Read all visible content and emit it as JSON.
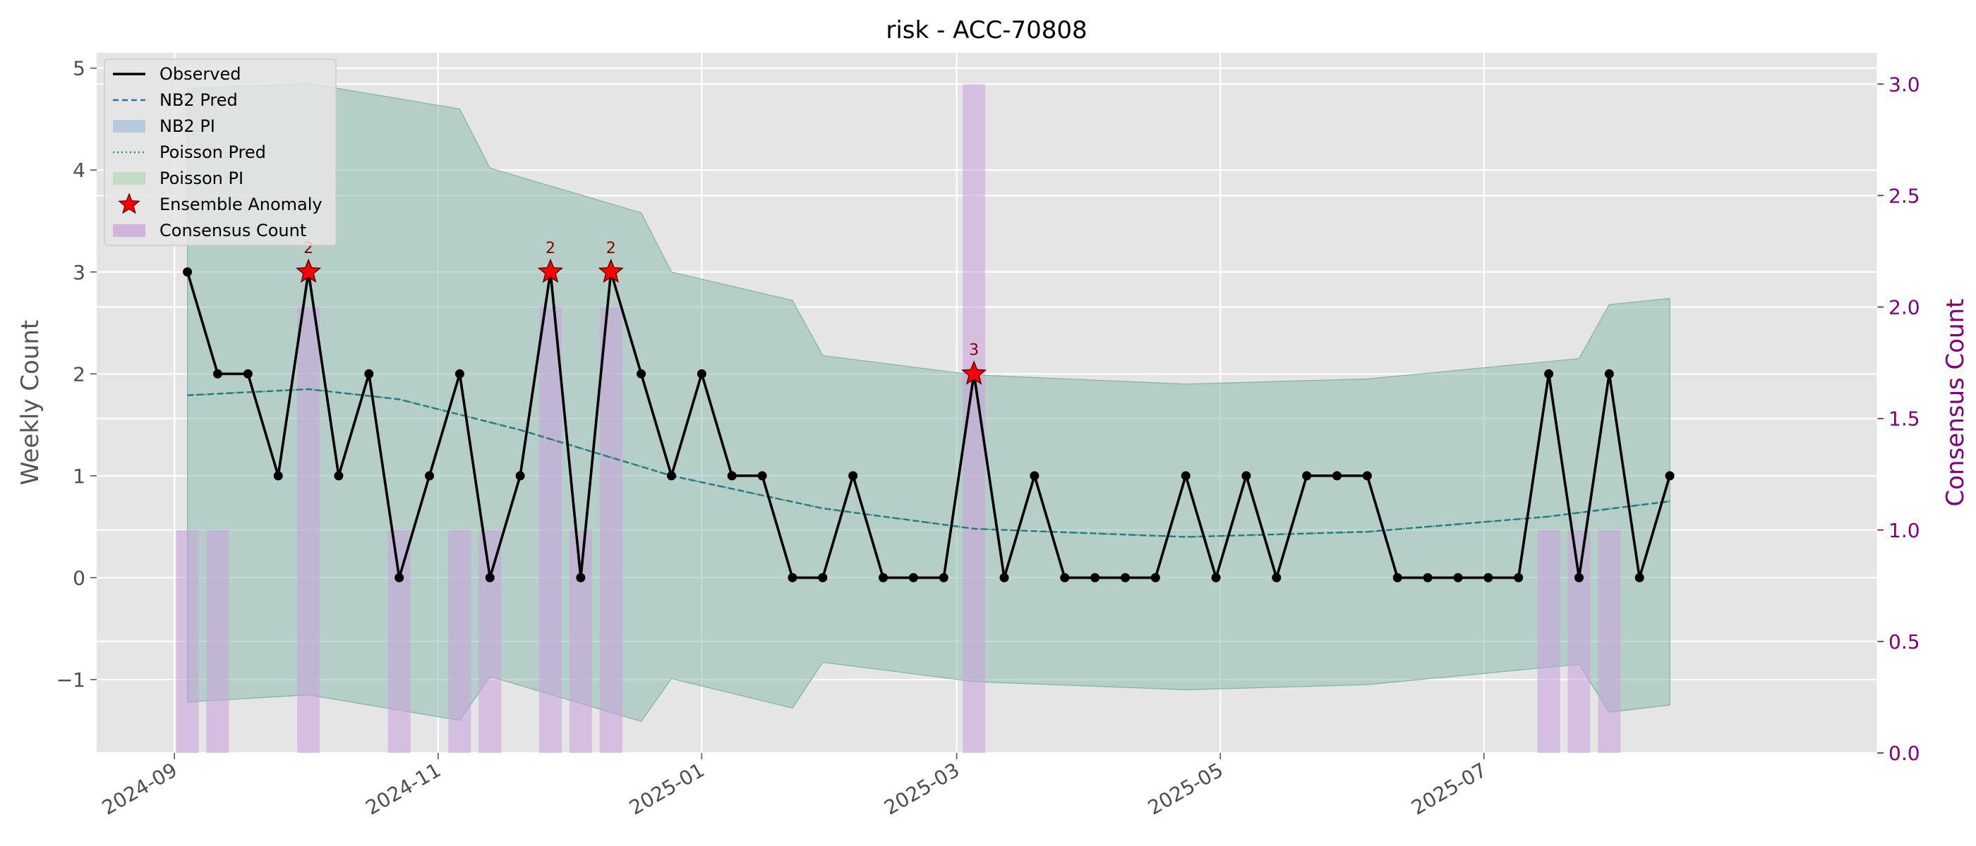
{
  "chart_data": {
    "type": "line",
    "title": "risk - ACC-70808",
    "ylabel": "Weekly Count",
    "ylabel_right": "Consensus Count",
    "ylim": [
      -1.72,
      5.15
    ],
    "ylim_right": [
      0,
      3.14
    ],
    "yticks": [
      {
        "v": -1,
        "label": "−1"
      },
      {
        "v": 0,
        "label": "0"
      },
      {
        "v": 1,
        "label": "1"
      },
      {
        "v": 2,
        "label": "2"
      },
      {
        "v": 3,
        "label": "3"
      },
      {
        "v": 4,
        "label": "4"
      },
      {
        "v": 5,
        "label": "5"
      }
    ],
    "yticks_right": [
      {
        "v": 0,
        "label": "0.0"
      },
      {
        "v": 0.5,
        "label": "0.5"
      },
      {
        "v": 1.0,
        "label": "1.0"
      },
      {
        "v": 1.5,
        "label": "1.5"
      },
      {
        "v": 2.0,
        "label": "2.0"
      },
      {
        "v": 2.5,
        "label": "2.5"
      },
      {
        "v": 3.0,
        "label": "3.0"
      }
    ],
    "xlim": [
      "2024-08-14",
      "2025-09-30"
    ],
    "xticks": [
      "2024-09-01",
      "2024-11-01",
      "2025-01-01",
      "2025-03-01",
      "2025-05-01",
      "2025-07-01"
    ],
    "xtick_labels": [
      "2024-09",
      "2024-11",
      "2025-01",
      "2025-03",
      "2025-05",
      "2025-07"
    ],
    "grid": true,
    "legend_position": "top-left",
    "colors": {
      "observed": "#000000",
      "nb2": "#1f77b4",
      "poisson": "#2ca02c",
      "band": "#8fbcb0",
      "anomaly": "#ff0000",
      "consensus": "#c9a0dc",
      "right_axis": "#800080",
      "background": "#e5e5e5"
    },
    "legend": [
      {
        "label": "Observed",
        "style": "line"
      },
      {
        "label": "NB2 Pred",
        "style": "dashed"
      },
      {
        "label": "NB2 PI",
        "style": "patch-blue"
      },
      {
        "label": "Poisson Pred",
        "style": "dotted"
      },
      {
        "label": "Poisson PI",
        "style": "patch-green"
      },
      {
        "label": "Ensemble Anomaly",
        "style": "star"
      },
      {
        "label": "Consensus Count",
        "style": "patch-purple"
      }
    ],
    "weeks": [
      "2024-09-04",
      "2024-09-11",
      "2024-09-18",
      "2024-09-25",
      "2024-10-02",
      "2024-10-09",
      "2024-10-16",
      "2024-10-23",
      "2024-10-30",
      "2024-11-06",
      "2024-11-13",
      "2024-11-20",
      "2024-11-27",
      "2024-12-04",
      "2024-12-11",
      "2024-12-18",
      "2024-12-25",
      "2025-01-01",
      "2025-01-08",
      "2025-01-15",
      "2025-01-22",
      "2025-01-29",
      "2025-02-05",
      "2025-02-12",
      "2025-02-19",
      "2025-02-26",
      "2025-03-05",
      "2025-03-12",
      "2025-03-19",
      "2025-03-26",
      "2025-04-02",
      "2025-04-09",
      "2025-04-16",
      "2025-04-23",
      "2025-04-30",
      "2025-05-07",
      "2025-05-14",
      "2025-05-21",
      "2025-05-28",
      "2025-06-04",
      "2025-06-11",
      "2025-06-18",
      "2025-06-25",
      "2025-07-02",
      "2025-07-09",
      "2025-07-16",
      "2025-07-23",
      "2025-07-30",
      "2025-08-06",
      "2025-08-13"
    ],
    "observed": [
      3,
      2,
      2,
      1,
      3,
      1,
      2,
      0,
      1,
      2,
      0,
      1,
      3,
      0,
      3,
      2,
      1,
      2,
      1,
      1,
      0,
      0,
      1,
      0,
      0,
      0,
      2,
      0,
      1,
      0,
      0,
      0,
      0,
      1,
      0,
      1,
      0,
      1,
      1,
      1,
      0,
      0,
      0,
      0,
      0,
      2,
      0,
      2,
      0,
      1
    ],
    "band": {
      "knots": [
        {
          "date": "2024-09-04",
          "lower": -1.22,
          "upper": 4.8
        },
        {
          "date": "2024-10-02",
          "lower": -1.15,
          "upper": 4.85
        },
        {
          "date": "2024-11-06",
          "lower": -1.4,
          "upper": 4.6
        },
        {
          "date": "2024-11-13",
          "lower": -0.97,
          "upper": 4.02
        },
        {
          "date": "2024-12-18",
          "lower": -1.41,
          "upper": 3.58
        },
        {
          "date": "2024-12-25",
          "lower": -0.99,
          "upper": 3.0
        },
        {
          "date": "2025-01-22",
          "lower": -1.28,
          "upper": 2.72
        },
        {
          "date": "2025-01-29",
          "lower": -0.83,
          "upper": 2.18
        },
        {
          "date": "2025-03-05",
          "lower": -1.02,
          "upper": 1.99
        },
        {
          "date": "2025-04-23",
          "lower": -1.1,
          "upper": 1.9
        },
        {
          "date": "2025-06-04",
          "lower": -1.05,
          "upper": 1.95
        },
        {
          "date": "2025-07-23",
          "lower": -0.85,
          "upper": 2.15
        },
        {
          "date": "2025-07-30",
          "lower": -1.32,
          "upper": 2.68
        },
        {
          "date": "2025-08-13",
          "lower": -1.25,
          "upper": 2.74
        }
      ]
    },
    "nb2_pred_knots": [
      {
        "date": "2024-09-04",
        "value": 1.79
      },
      {
        "date": "2024-10-02",
        "value": 1.85
      },
      {
        "date": "2024-10-23",
        "value": 1.75
      },
      {
        "date": "2024-11-20",
        "value": 1.45
      },
      {
        "date": "2024-12-25",
        "value": 1.0
      },
      {
        "date": "2025-01-29",
        "value": 0.68
      },
      {
        "date": "2025-03-05",
        "value": 0.48
      },
      {
        "date": "2025-04-23",
        "value": 0.4
      },
      {
        "date": "2025-06-04",
        "value": 0.45
      },
      {
        "date": "2025-07-16",
        "value": 0.6
      },
      {
        "date": "2025-08-13",
        "value": 0.75
      }
    ],
    "anomalies": [
      {
        "date": "2024-10-02",
        "value": 3,
        "label": "2"
      },
      {
        "date": "2024-11-27",
        "value": 3,
        "label": "2"
      },
      {
        "date": "2024-12-11",
        "value": 3,
        "label": "2"
      },
      {
        "date": "2025-03-05",
        "value": 2,
        "label": "3"
      }
    ],
    "consensus": [
      {
        "date": "2024-09-04",
        "value": 1
      },
      {
        "date": "2024-09-11",
        "value": 1
      },
      {
        "date": "2024-10-02",
        "value": 2
      },
      {
        "date": "2024-10-23",
        "value": 1
      },
      {
        "date": "2024-11-06",
        "value": 1
      },
      {
        "date": "2024-11-13",
        "value": 1
      },
      {
        "date": "2024-11-27",
        "value": 2
      },
      {
        "date": "2024-12-04",
        "value": 1
      },
      {
        "date": "2024-12-11",
        "value": 2
      },
      {
        "date": "2025-03-05",
        "value": 3
      },
      {
        "date": "2025-07-16",
        "value": 1
      },
      {
        "date": "2025-07-23",
        "value": 1
      },
      {
        "date": "2025-07-30",
        "value": 1
      }
    ]
  }
}
